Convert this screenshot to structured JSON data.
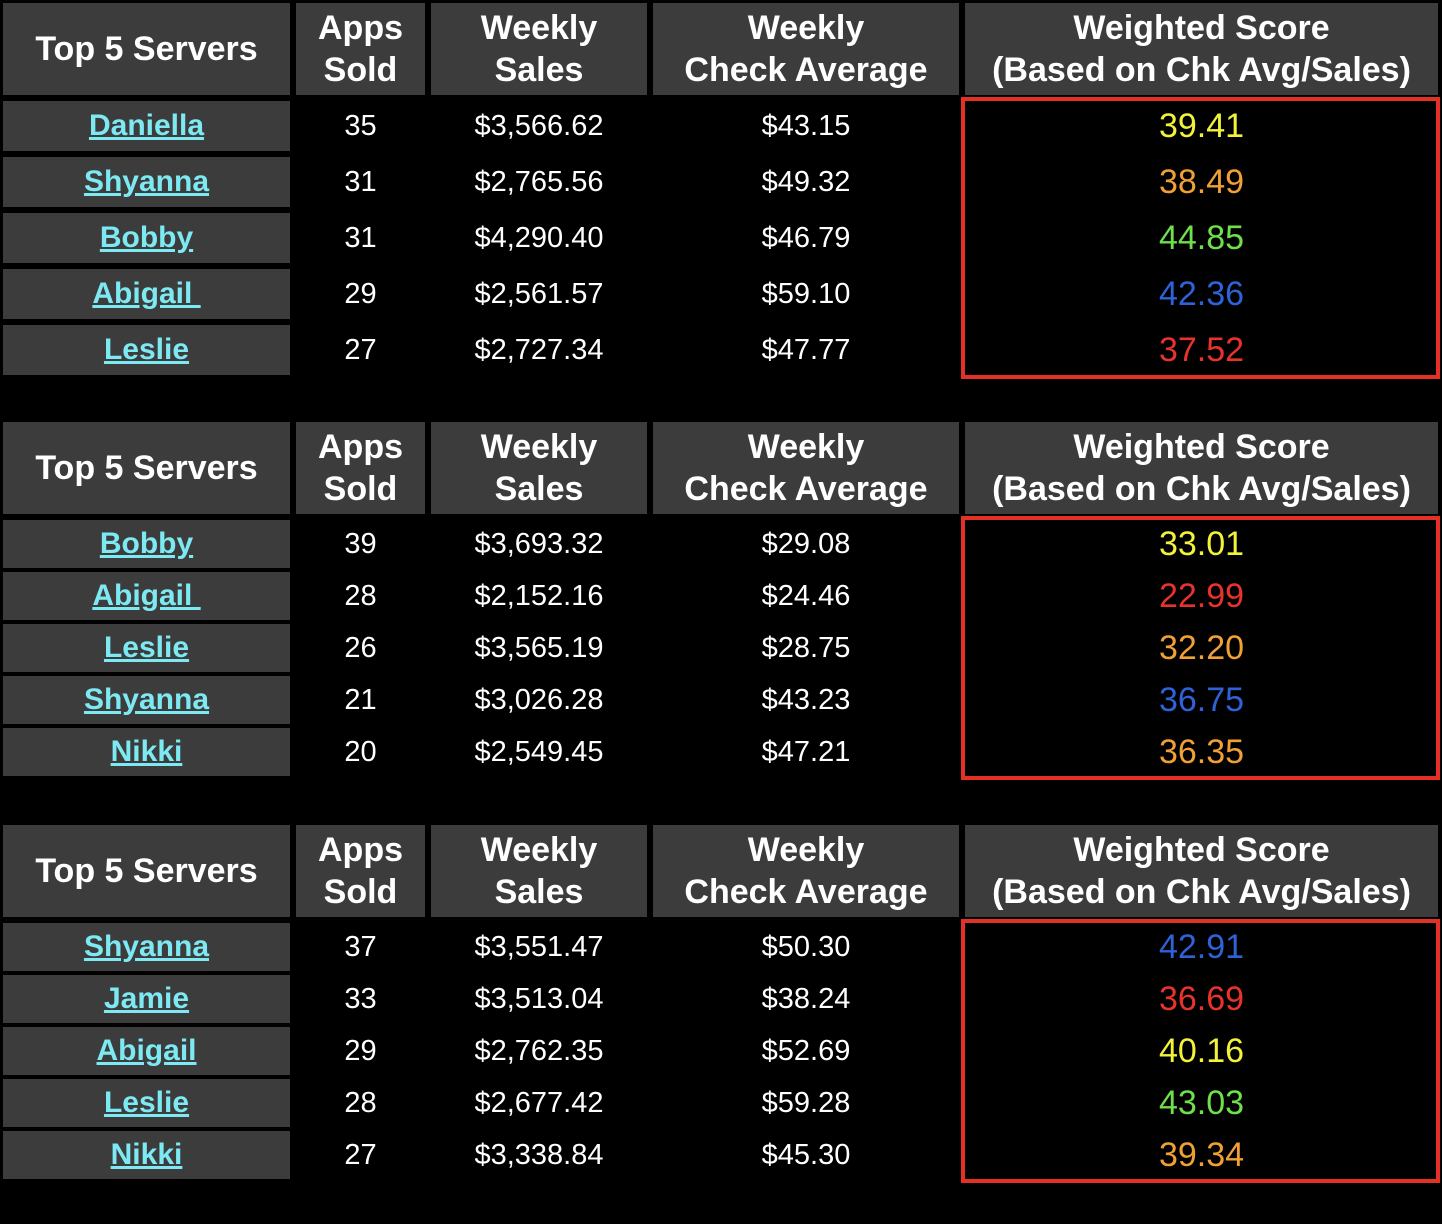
{
  "tables": [
    {
      "header": [
        [
          "Top 5 Servers"
        ],
        [
          "Apps",
          "Sold"
        ],
        [
          "Weekly",
          "Sales"
        ],
        [
          "Weekly",
          "Check Average"
        ],
        [
          "Weighted Score",
          "(Based on Chk Avg/Sales)"
        ]
      ],
      "rows": [
        {
          "cells": [
            "Daniella",
            "35",
            "$3,566.62",
            "$43.15",
            "39.41"
          ],
          "score_color": "#f2f23a"
        },
        {
          "cells": [
            "Shyanna",
            "31",
            "$2,765.56",
            "$49.32",
            "38.49"
          ],
          "score_color": "#f0a035"
        },
        {
          "cells": [
            "Bobby",
            "31",
            "$4,290.40",
            "$46.79",
            "44.85"
          ],
          "score_color": "#6fe04b"
        },
        {
          "cells": [
            "Abigail ",
            "29",
            "$2,561.57",
            "$59.10",
            "42.36"
          ],
          "score_color": "#2f62d8"
        },
        {
          "cells": [
            "Leslie",
            "27",
            "$2,727.34",
            "$47.77",
            "37.52"
          ],
          "score_color": "#e8332d"
        }
      ]
    },
    {
      "header": [
        [
          "Top 5 Servers"
        ],
        [
          "Apps",
          "Sold"
        ],
        [
          "Weekly",
          "Sales"
        ],
        [
          "Weekly",
          "Check Average"
        ],
        [
          "Weighted Score",
          "(Based on Chk Avg/Sales)"
        ]
      ],
      "rows": [
        {
          "cells": [
            "Bobby",
            "39",
            "$3,693.32",
            "$29.08",
            "33.01"
          ],
          "score_color": "#f2f23a"
        },
        {
          "cells": [
            "Abigail ",
            "28",
            "$2,152.16",
            "$24.46",
            "22.99"
          ],
          "score_color": "#e8332d"
        },
        {
          "cells": [
            "Leslie",
            "26",
            "$3,565.19",
            "$28.75",
            "32.20"
          ],
          "score_color": "#f0a035"
        },
        {
          "cells": [
            "Shyanna",
            "21",
            "$3,026.28",
            "$43.23",
            "36.75"
          ],
          "score_color": "#2f62d8"
        },
        {
          "cells": [
            "Nikki",
            "20",
            "$2,549.45",
            "$47.21",
            "36.35"
          ],
          "score_color": "#f0a035"
        }
      ]
    },
    {
      "header": [
        [
          "Top 5 Servers"
        ],
        [
          "Apps",
          "Sold"
        ],
        [
          "Weekly",
          "Sales"
        ],
        [
          "Weekly",
          "Check Average"
        ],
        [
          "Weighted Score",
          "(Based on Chk Avg/Sales)"
        ]
      ],
      "rows": [
        {
          "cells": [
            "Shyanna",
            "37",
            "$3,551.47",
            "$50.30",
            "42.91"
          ],
          "score_color": "#2f62d8"
        },
        {
          "cells": [
            "Jamie",
            "33",
            "$3,513.04",
            "$38.24",
            "36.69"
          ],
          "score_color": "#e8332d"
        },
        {
          "cells": [
            "Abigail",
            "29",
            "$2,762.35",
            "$52.69",
            "40.16"
          ],
          "score_color": "#f2f23a"
        },
        {
          "cells": [
            "Leslie",
            "28",
            "$2,677.42",
            "$59.28",
            "43.03"
          ],
          "score_color": "#6fe04b"
        },
        {
          "cells": [
            "Nikki",
            "27",
            "$3,338.84",
            "$45.30",
            "39.34"
          ],
          "score_color": "#f0a035"
        }
      ]
    }
  ]
}
